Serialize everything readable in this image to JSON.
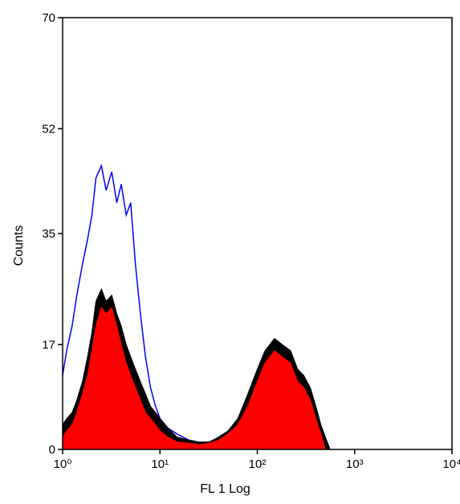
{
  "chart_data": {
    "type": "area",
    "xscale": "log",
    "xlim": [
      1,
      10000
    ],
    "ylim": [
      0,
      70
    ],
    "xlabel": "FL 1 Log",
    "ylabel": "Counts",
    "xticks": [
      {
        "value": 1,
        "label": "10⁰"
      },
      {
        "value": 10,
        "label": "10¹"
      },
      {
        "value": 100,
        "label": "10²"
      },
      {
        "value": 1000,
        "label": "10³"
      },
      {
        "value": 10000,
        "label": "10⁴"
      }
    ],
    "yticks": [
      {
        "value": 0,
        "label": "0"
      },
      {
        "value": 17,
        "label": "17"
      },
      {
        "value": 35,
        "label": "35"
      },
      {
        "value": 52,
        "label": "52"
      },
      {
        "value": 70,
        "label": "70"
      }
    ],
    "grid": false,
    "series": [
      {
        "color": "#0000ff",
        "style": "outline",
        "x": [
          1.0,
          1.1,
          1.25,
          1.4,
          1.6,
          1.8,
          2.0,
          2.2,
          2.5,
          2.8,
          3.2,
          3.6,
          4.0,
          4.5,
          5.0,
          5.6,
          6.3,
          7.1,
          8.0,
          9.0,
          10,
          12,
          15,
          20,
          25,
          32,
          40,
          50,
          63,
          80,
          100
        ],
        "values": [
          12,
          16,
          20,
          25,
          30,
          34,
          38,
          44,
          46,
          42,
          45,
          40,
          43,
          38,
          40,
          30,
          22,
          15,
          10,
          7,
          5,
          3.5,
          2.5,
          1.5,
          1.2,
          0.8,
          0.6,
          0.4,
          0.3,
          0.2,
          0
        ]
      },
      {
        "color": "#000000",
        "style": "filled",
        "x": [
          1.0,
          1.1,
          1.25,
          1.4,
          1.6,
          1.8,
          2.0,
          2.2,
          2.5,
          2.8,
          3.2,
          3.6,
          4.0,
          4.5,
          5.0,
          5.6,
          6.3,
          7.1,
          8.0,
          9.0,
          10,
          12,
          15,
          20,
          25,
          32,
          40,
          50,
          63,
          80,
          100,
          120,
          150,
          180,
          220,
          260,
          300,
          350,
          400,
          450,
          500,
          560
        ],
        "values": [
          4,
          5,
          6,
          8,
          11,
          15,
          19,
          24,
          26,
          24,
          25,
          22,
          20,
          17,
          15,
          13,
          11,
          9,
          7,
          6,
          5,
          3.5,
          2,
          1.5,
          1.2,
          1.2,
          2,
          3,
          5,
          9,
          13,
          16,
          18,
          17,
          16,
          13,
          12,
          10,
          7,
          4,
          2,
          0
        ]
      },
      {
        "color": "#ff0000",
        "style": "filled",
        "x": [
          1.0,
          1.1,
          1.25,
          1.4,
          1.6,
          1.8,
          2.0,
          2.2,
          2.5,
          2.8,
          3.2,
          3.6,
          4.0,
          4.5,
          5.0,
          5.6,
          6.3,
          7.1,
          8.0,
          9.0,
          10,
          12,
          15,
          20,
          25,
          32,
          40,
          50,
          63,
          80,
          100,
          120,
          150,
          180,
          220,
          260,
          300,
          350,
          400,
          450,
          500
        ],
        "values": [
          2,
          3,
          4,
          6,
          9,
          12,
          16,
          20,
          23,
          22,
          23,
          20,
          17,
          14,
          12,
          10,
          8,
          6,
          5,
          4,
          3,
          2,
          1.2,
          1,
          0.8,
          1,
          1.5,
          2.5,
          4,
          7,
          11,
          14,
          16,
          15,
          14,
          11,
          10,
          8,
          5,
          2.5,
          0
        ]
      }
    ]
  },
  "colors": {
    "background": "#ffffff",
    "axis": "#000000"
  }
}
